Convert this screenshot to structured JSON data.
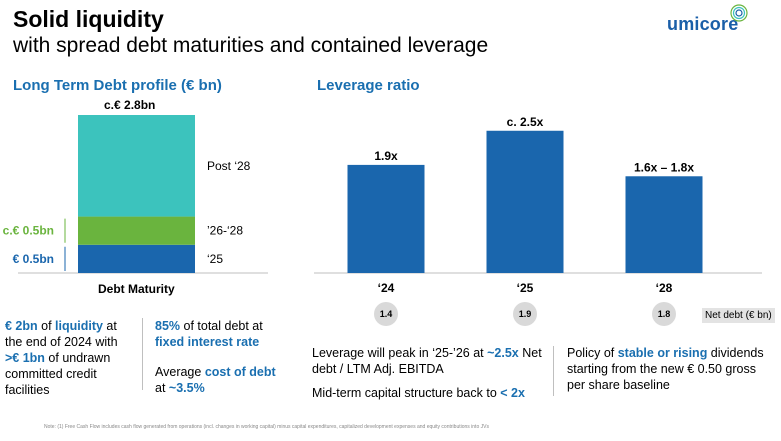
{
  "header": {
    "title": "Solid liquidity",
    "subtitle": "with spread debt maturities and contained leverage",
    "logo_text": "umicore"
  },
  "left": {
    "heading": "Long Term Debt profile (€ bn)",
    "total_label": "c.€ 2.8bn",
    "axis_label": "Debt Maturity",
    "notes": {
      "liquidity": [
        "€ 2bn",
        " of ",
        "liquidity",
        " at the end of 2024 with ",
        ">€ 1bn",
        " of undrawn committed credit facilities"
      ],
      "fixed": [
        "85%",
        " of total debt at ",
        "fixed interest rate"
      ],
      "cost": [
        "Average ",
        "cost of debt",
        " at ",
        "~3.5%"
      ]
    }
  },
  "right": {
    "heading": "Leverage ratio",
    "net_debt_label": "Net debt (€ bn)",
    "net_debt": [
      "1.4",
      "1.9",
      "1.8"
    ],
    "notes": {
      "peak": [
        "Leverage will peak in ‘25-’26 at ",
        "~2.5x",
        " Net debt / LTM Adj. EBITDA"
      ],
      "midterm": [
        "Mid-term capital structure back to ",
        "< 2x"
      ],
      "dividend": [
        "Policy of ",
        "stable or rising",
        " dividends starting from the new € 0.50 gross per share baseline"
      ]
    }
  },
  "footnote": "Note: (1) Free Cash Flow includes cash flow generated from operations (incl. changes in working capital) minus capital expenditures, capitalized development expenses and equity contributions into JVs",
  "colors": {
    "teal": "#3cc3bd",
    "green": "#6ab43e",
    "blue": "#1a66ad",
    "heading_blue": "#1a6fb0"
  },
  "chart_data": [
    {
      "type": "bar",
      "stacked": true,
      "title": "Long Term Debt profile (€ bn)",
      "categories": [
        "Debt Maturity"
      ],
      "series": [
        {
          "name": "‘25",
          "values": [
            0.5
          ],
          "label": "€ 0.5bn",
          "color": "#1a66ad"
        },
        {
          "name": "’26-‘28",
          "values": [
            0.5
          ],
          "label": "c.€ 0.5bn",
          "color": "#6ab43e"
        },
        {
          "name": "Post ‘28",
          "values": [
            1.8
          ],
          "label": "",
          "color": "#3cc3bd"
        }
      ],
      "total": 2.8,
      "ylim": [
        0,
        2.8
      ]
    },
    {
      "type": "bar",
      "title": "Leverage ratio",
      "categories": [
        "‘24",
        "‘25",
        "‘28"
      ],
      "values": [
        1.9,
        2.5,
        1.7
      ],
      "value_labels": [
        "1.9x",
        "c. 2.5x",
        "1.6x – 1.8x"
      ],
      "ylim": [
        0,
        2.9
      ],
      "color": "#1a66ad"
    }
  ]
}
